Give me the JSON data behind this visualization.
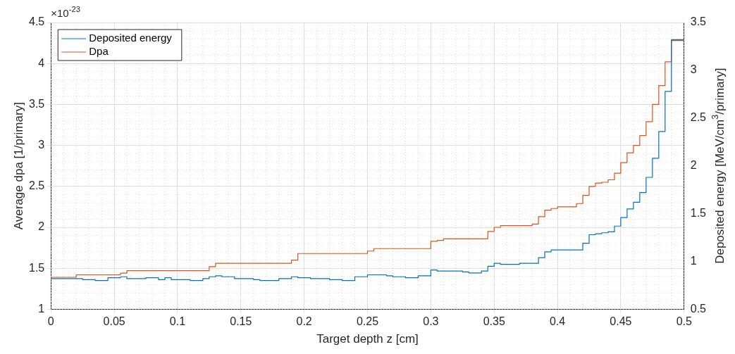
{
  "chart_data": {
    "type": "step",
    "xlabel": "Target depth z [cm]",
    "ylabel": "Average dpa [1/primary]",
    "y2label": "Deposited energy [MeV/cm$^{3}$/primary]",
    "annotations": [
      "×10$^{-23}$"
    ],
    "xlim": [
      0,
      0.5
    ],
    "xticks": [
      0,
      0.05,
      0.1,
      0.15,
      0.2,
      0.25,
      0.3,
      0.35,
      0.4,
      0.45,
      0.5
    ],
    "ylim": [
      1,
      4.5
    ],
    "yticks": [
      1,
      1.5,
      2,
      2.5,
      3,
      3.5,
      4,
      4.5
    ],
    "y2lim": [
      0.5,
      3.5
    ],
    "y2ticks": [
      0.5,
      1,
      1.5,
      2,
      2.5,
      3,
      3.5
    ],
    "grid": true,
    "legend": "top left",
    "series": [
      {
        "name": "Deposited energy",
        "color": "#0072bd",
        "axis": "y2",
        "x": [
          0,
          0.02,
          0.025,
          0.035,
          0.045,
          0.05,
          0.055,
          0.06,
          0.075,
          0.085,
          0.09,
          0.095,
          0.11,
          0.12,
          0.125,
          0.13,
          0.135,
          0.145,
          0.155,
          0.16,
          0.165,
          0.175,
          0.18,
          0.19,
          0.195,
          0.205,
          0.22,
          0.23,
          0.24,
          0.25,
          0.255,
          0.265,
          0.27,
          0.28,
          0.29,
          0.3,
          0.305,
          0.31,
          0.32,
          0.325,
          0.33,
          0.34,
          0.345,
          0.35,
          0.355,
          0.37,
          0.385,
          0.39,
          0.395,
          0.42,
          0.425,
          0.43,
          0.435,
          0.44,
          0.445,
          0.45,
          0.455,
          0.46,
          0.465,
          0.47,
          0.475,
          0.48,
          0.485,
          0.49,
          0.495,
          0.5
        ],
        "values": [
          0.8,
          0.82,
          0.82,
          0.81,
          0.8,
          0.83,
          0.83,
          0.84,
          0.82,
          0.83,
          0.81,
          0.83,
          0.81,
          0.8,
          0.82,
          0.84,
          0.85,
          0.84,
          0.82,
          0.82,
          0.81,
          0.8,
          0.8,
          0.82,
          0.84,
          0.83,
          0.82,
          0.81,
          0.8,
          0.84,
          0.86,
          0.86,
          0.85,
          0.84,
          0.83,
          0.85,
          0.91,
          0.9,
          0.9,
          0.9,
          0.89,
          0.88,
          0.9,
          0.95,
          0.98,
          0.97,
          0.98,
          1.04,
          1.1,
          1.12,
          1.19,
          1.28,
          1.29,
          1.3,
          1.31,
          1.37,
          1.46,
          1.55,
          1.62,
          1.72,
          1.88,
          2.08,
          2.36,
          2.78,
          3.32,
          3.32
        ]
      },
      {
        "name": "Dpa",
        "color": "#d95319",
        "x": [
          0,
          0.02,
          0.055,
          0.06,
          0.125,
          0.13,
          0.19,
          0.195,
          0.25,
          0.255,
          0.3,
          0.305,
          0.31,
          0.345,
          0.35,
          0.355,
          0.38,
          0.385,
          0.39,
          0.395,
          0.4,
          0.415,
          0.42,
          0.425,
          0.43,
          0.435,
          0.44,
          0.445,
          0.45,
          0.455,
          0.46,
          0.465,
          0.47,
          0.475,
          0.48,
          0.485,
          0.49,
          0.495,
          0.5
        ],
        "values": [
          1.36,
          1.39,
          1.42,
          1.44,
          1.47,
          1.52,
          1.56,
          1.6,
          1.68,
          1.71,
          1.74,
          1.83,
          1.84,
          1.86,
          1.95,
          2,
          2.02,
          2.04,
          2.13,
          2.21,
          2.23,
          2.25,
          2.29,
          2.39,
          2.5,
          2.54,
          2.55,
          2.58,
          2.66,
          2.79,
          2.91,
          3,
          3.12,
          3.29,
          3.5,
          3.73,
          4.02,
          4.28,
          4.28
        ]
      }
    ]
  }
}
